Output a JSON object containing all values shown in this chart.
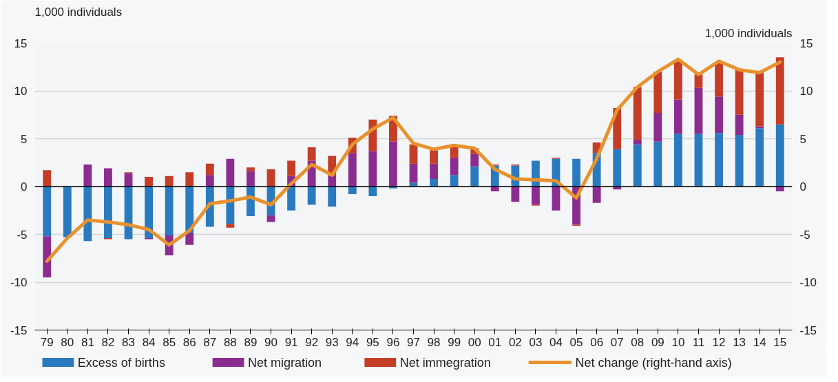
{
  "chart_data": {
    "type": "bar",
    "stacked": true,
    "ylabel": "1,000 individuals",
    "y2label": "1,000 individuals",
    "categories": [
      "79",
      "80",
      "81",
      "82",
      "83",
      "84",
      "85",
      "86",
      "87",
      "88",
      "89",
      "90",
      "91",
      "92",
      "93",
      "94",
      "95",
      "96",
      "97",
      "98",
      "99",
      "00",
      "01",
      "02",
      "03",
      "04",
      "05",
      "06",
      "07",
      "08",
      "09",
      "10",
      "11",
      "12",
      "13",
      "14",
      "15"
    ],
    "series": [
      {
        "name": "Excess of births",
        "color": "#2a7abf",
        "values": [
          -5.2,
          -5.3,
          -5.7,
          -5.4,
          -5.5,
          -5.4,
          -5.1,
          -4.9,
          -4.2,
          -3.9,
          -3.1,
          -3.0,
          -2.5,
          -1.9,
          -2.1,
          -0.8,
          -1.0,
          -0.2,
          0.4,
          0.8,
          1.2,
          2.1,
          2.2,
          2.2,
          2.7,
          2.9,
          2.9,
          3.5,
          3.9,
          4.4,
          4.7,
          5.5,
          5.5,
          5.6,
          5.4,
          6.1,
          6.5
        ]
      },
      {
        "name": "Net migration",
        "color": "#8b2c8f",
        "values": [
          -4.3,
          null,
          2.3,
          1.9,
          1.4,
          -0.1,
          -2.1,
          -1.2,
          1.2,
          2.9,
          1.6,
          -0.7,
          1.1,
          2.7,
          1.1,
          3.5,
          3.7,
          4.7,
          2.0,
          1.6,
          1.8,
          1.3,
          -0.5,
          -1.6,
          -1.9,
          -2.5,
          -4.0,
          -1.7,
          -0.3,
          0.5,
          3.0,
          3.6,
          4.8,
          3.8,
          2.1,
          0.2,
          -0.5
        ]
      },
      {
        "name": "Net immegration",
        "color": "#c43d27",
        "values": [
          1.7,
          null,
          0.0,
          -0.1,
          0.1,
          1.0,
          1.1,
          1.5,
          1.2,
          -0.4,
          0.4,
          1.8,
          1.6,
          1.4,
          2.1,
          1.6,
          3.3,
          2.7,
          2.0,
          1.4,
          1.1,
          0.6,
          0.1,
          0.1,
          -0.1,
          0.1,
          -0.1,
          1.1,
          4.3,
          5.5,
          4.3,
          4.1,
          1.4,
          3.6,
          4.7,
          5.6,
          7.0
        ]
      },
      {
        "name": "Net change (right-hand axis)",
        "type": "line",
        "axis": "y2",
        "color": "#e8922e",
        "values": [
          -7.8,
          -5.4,
          -3.5,
          -3.7,
          -4.0,
          -4.5,
          -6.1,
          -4.6,
          -1.8,
          -1.5,
          -1.1,
          -1.9,
          0.3,
          2.3,
          1.2,
          4.4,
          6.0,
          7.2,
          4.5,
          3.9,
          4.3,
          4.0,
          1.8,
          0.8,
          0.7,
          0.6,
          -1.2,
          2.9,
          8.0,
          10.4,
          12.0,
          13.3,
          11.7,
          13.1,
          12.2,
          11.9,
          13.0
        ]
      }
    ],
    "ylim": [
      -15,
      15
    ],
    "yticks": [
      -15,
      -10,
      -5,
      0,
      5,
      10,
      15
    ],
    "y2lim": [
      -15,
      15
    ],
    "y2ticks": [
      -15,
      -10,
      -5,
      0,
      5,
      10,
      15
    ],
    "ref_lines": [
      {
        "axis": "y",
        "value": 0,
        "color": "#000000"
      }
    ],
    "grid": "y",
    "legend": "bottom"
  }
}
